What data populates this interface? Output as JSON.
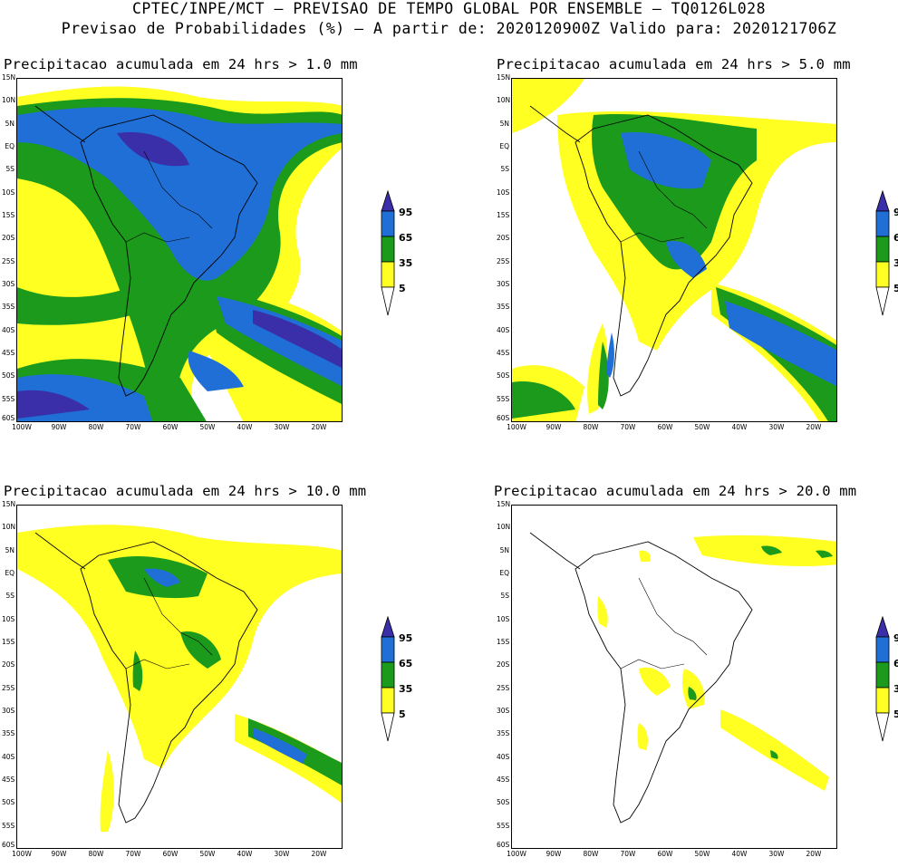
{
  "header": {
    "line1": "CPTEC/INPE/MCT — PREVISAO DE TEMPO GLOBAL POR ENSEMBLE — TQ0126L028",
    "line2": "Previsao de Probabilidades (%) —  A partir de: 2020120900Z  Valido para: 2020121706Z"
  },
  "panels": [
    {
      "title": "Precipitacao acumulada em 24 hrs > 1.0 mm"
    },
    {
      "title": "Precipitacao acumulada em 24 hrs > 5.0 mm"
    },
    {
      "title": "Precipitacao acumulada em 24 hrs > 10.0 mm"
    },
    {
      "title": "Precipitacao acumulada em 24 hrs > 20.0 mm"
    }
  ],
  "lat_ticks": [
    "15N",
    "10N",
    "5N",
    "EQ",
    "5S",
    "10S",
    "15S",
    "20S",
    "25S",
    "30S",
    "35S",
    "40S",
    "45S",
    "50S",
    "55S",
    "60S"
  ],
  "lon_ticks": [
    "100W",
    "90W",
    "80W",
    "70W",
    "60W",
    "50W",
    "40W",
    "30W",
    "20W"
  ],
  "legend": {
    "levels": [
      "95",
      "65",
      "35",
      "5"
    ],
    "colors": {
      "c95": "#3a2fa8",
      "c65": "#1f6fd6",
      "c35": "#1b9a1b",
      "c5": "#ffff22"
    }
  }
}
